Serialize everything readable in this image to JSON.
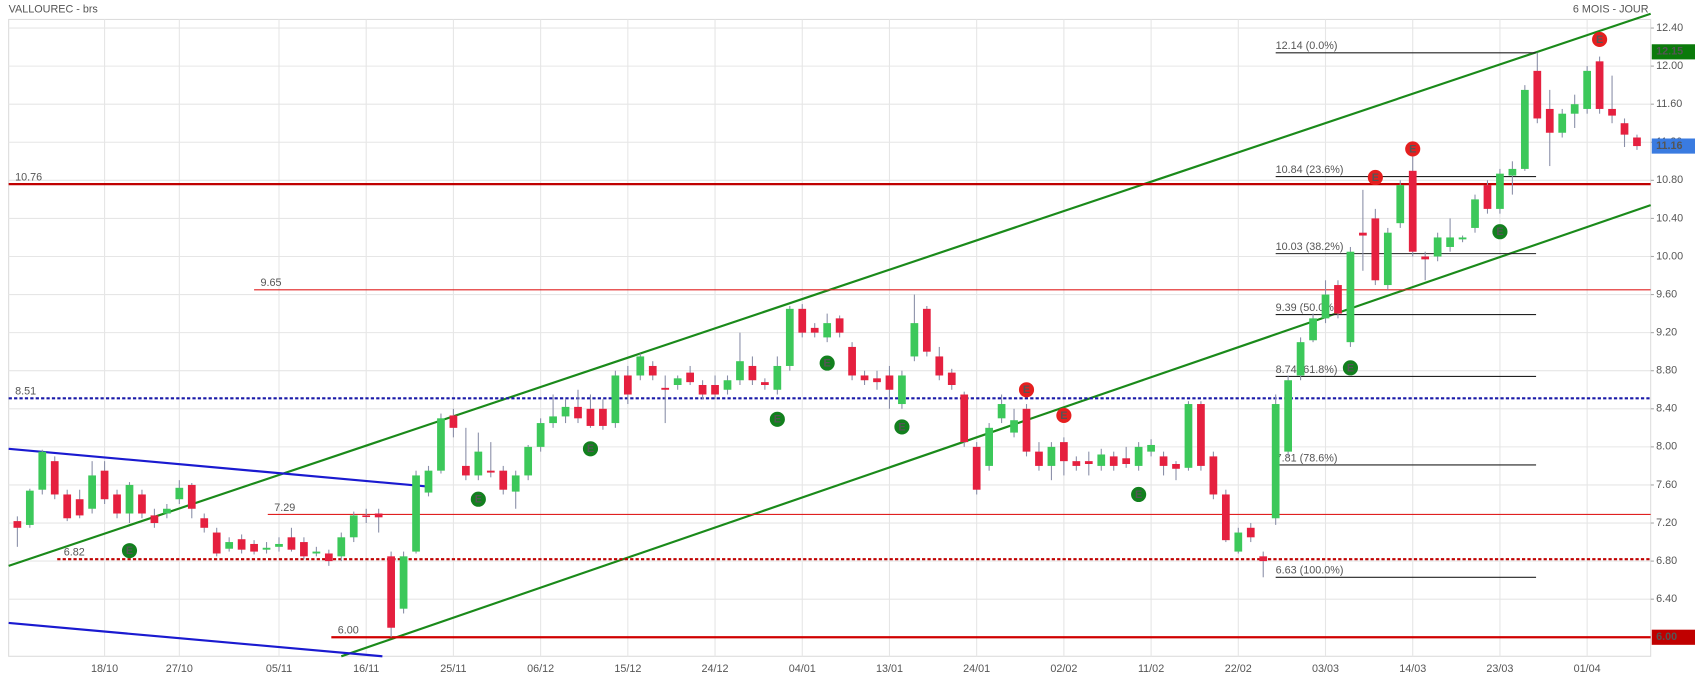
{
  "chart_data": {
    "type": "candlestick",
    "title": "VALLOUREC - brs",
    "subtitle": "6 MOIS - JOUR",
    "up_color": "#3cc85a",
    "down_color": "#e5203f",
    "grid": true,
    "xlim": [
      -0.7,
      131.1
    ],
    "ylim": [
      5.8,
      12.49
    ],
    "xticks": [
      {
        "value": 7,
        "label": "18/10"
      },
      {
        "value": 13,
        "label": "27/10"
      },
      {
        "value": 21,
        "label": "05/11"
      },
      {
        "value": 28,
        "label": "16/11"
      },
      {
        "value": 35,
        "label": "25/11"
      },
      {
        "value": 42,
        "label": "06/12"
      },
      {
        "value": 49,
        "label": "15/12"
      },
      {
        "value": 56,
        "label": "24/12"
      },
      {
        "value": 63,
        "label": "04/01"
      },
      {
        "value": 70,
        "label": "13/01"
      },
      {
        "value": 77,
        "label": "24/01"
      },
      {
        "value": 84,
        "label": "02/02"
      },
      {
        "value": 91,
        "label": "11/02"
      },
      {
        "value": 98,
        "label": "22/02"
      },
      {
        "value": 105,
        "label": "03/03"
      },
      {
        "value": 112,
        "label": "14/03"
      },
      {
        "value": 119,
        "label": "23/03"
      },
      {
        "value": 126,
        "label": "01/04"
      }
    ],
    "yticks": [
      {
        "value": 6.4,
        "label": "6.40"
      },
      {
        "value": 6.8,
        "label": "6.80"
      },
      {
        "value": 7.2,
        "label": "7.20"
      },
      {
        "value": 7.6,
        "label": "7.60"
      },
      {
        "value": 8.0,
        "label": "8.00"
      },
      {
        "value": 8.4,
        "label": "8.40"
      },
      {
        "value": 8.8,
        "label": "8.80"
      },
      {
        "value": 9.2,
        "label": "9.20"
      },
      {
        "value": 9.6,
        "label": "9.60"
      },
      {
        "value": 10.0,
        "label": "10.00"
      },
      {
        "value": 10.4,
        "label": "10.40"
      },
      {
        "value": 10.8,
        "label": "10.80"
      },
      {
        "value": 11.2,
        "label": "11.20"
      },
      {
        "value": 11.6,
        "label": "11.60"
      },
      {
        "value": 12.0,
        "label": "12.00"
      },
      {
        "value": 12.4,
        "label": "12.40"
      }
    ],
    "open": [
      7.22,
      7.18,
      7.55,
      7.85,
      7.5,
      7.45,
      7.35,
      7.75,
      7.5,
      7.3,
      7.5,
      7.28,
      7.3,
      7.45,
      7.6,
      7.25,
      7.1,
      6.93,
      7.03,
      6.98,
      6.92,
      6.95,
      7.05,
      7.0,
      6.88,
      6.88,
      6.85,
      7.05,
      7.28,
      7.3,
      6.85,
      6.3,
      6.9,
      7.52,
      7.75,
      8.33,
      7.8,
      7.7,
      7.75,
      7.75,
      7.53,
      7.7,
      8.0,
      8.25,
      8.32,
      8.42,
      8.4,
      8.4,
      8.25,
      8.75,
      8.75,
      8.85,
      8.62,
      8.65,
      8.78,
      8.65,
      8.65,
      8.6,
      8.7,
      8.85,
      8.68,
      8.6,
      8.85,
      9.45,
      9.25,
      9.15,
      9.35,
      9.05,
      8.75,
      8.72,
      8.75,
      8.45,
      8.95,
      9.45,
      8.95,
      8.78,
      8.55,
      8.0,
      7.8,
      8.3,
      8.15,
      8.4,
      7.95,
      7.8,
      8.05,
      7.85,
      7.85,
      7.8,
      7.9,
      7.88,
      7.8,
      7.95,
      7.9,
      7.82,
      7.78,
      8.45,
      7.9,
      7.5,
      6.9,
      7.15,
      6.85,
      7.25,
      7.95,
      8.75,
      9.12,
      9.35,
      9.7,
      9.1,
      10.25,
      10.4,
      9.7,
      10.35,
      10.9,
      10.0,
      10.0,
      10.1,
      10.18,
      10.3,
      10.75,
      10.5,
      10.85,
      10.92,
      11.95,
      11.55,
      11.3,
      11.5,
      11.55,
      12.05,
      11.55,
      11.4,
      11.25
    ],
    "high": [
      7.27,
      7.56,
      7.97,
      7.9,
      7.55,
      7.55,
      7.85,
      7.85,
      7.55,
      7.63,
      7.55,
      7.35,
      7.4,
      7.65,
      7.62,
      7.3,
      7.15,
      7.05,
      7.08,
      7.02,
      7.0,
      7.05,
      7.15,
      7.05,
      6.95,
      6.92,
      7.1,
      7.32,
      7.35,
      7.35,
      6.9,
      6.9,
      7.75,
      7.8,
      8.35,
      8.4,
      8.2,
      8.15,
      8.05,
      7.8,
      7.75,
      8.02,
      8.3,
      8.55,
      8.5,
      8.6,
      8.55,
      8.5,
      8.8,
      8.85,
      8.98,
      8.9,
      8.75,
      8.75,
      8.85,
      8.7,
      8.75,
      8.75,
      9.2,
      8.95,
      8.72,
      8.95,
      9.48,
      9.5,
      9.3,
      9.4,
      9.38,
      9.1,
      8.8,
      8.8,
      8.85,
      8.8,
      9.6,
      9.48,
      9.05,
      8.82,
      8.58,
      8.05,
      8.25,
      8.55,
      8.4,
      8.45,
      8.05,
      8.05,
      8.1,
      7.9,
      7.95,
      7.98,
      7.95,
      8.0,
      8.05,
      8.08,
      7.95,
      7.85,
      8.48,
      8.48,
      7.95,
      7.55,
      7.15,
      7.2,
      6.9,
      8.55,
      8.75,
      9.15,
      9.4,
      9.75,
      9.75,
      10.1,
      10.7,
      10.5,
      10.3,
      10.8,
      11.15,
      10.05,
      10.25,
      10.4,
      10.22,
      10.65,
      10.8,
      10.92,
      11.0,
      11.8,
      12.14,
      11.75,
      11.55,
      11.7,
      12.0,
      12.1,
      11.9,
      11.45,
      11.28
    ],
    "low": [
      6.95,
      7.15,
      7.5,
      7.45,
      7.22,
      7.25,
      7.3,
      7.4,
      7.25,
      7.2,
      7.25,
      7.15,
      7.25,
      7.4,
      7.25,
      7.1,
      6.85,
      6.9,
      6.88,
      6.87,
      6.88,
      6.9,
      6.9,
      6.82,
      6.85,
      6.75,
      6.8,
      7.0,
      7.2,
      7.1,
      6.0,
      6.25,
      6.88,
      7.48,
      7.72,
      8.1,
      7.65,
      7.65,
      7.68,
      7.5,
      7.35,
      7.65,
      7.95,
      8.2,
      8.25,
      8.25,
      8.2,
      8.18,
      8.2,
      8.45,
      8.7,
      8.7,
      8.25,
      8.6,
      8.65,
      8.5,
      8.5,
      8.55,
      8.65,
      8.65,
      8.6,
      8.55,
      8.8,
      9.15,
      9.15,
      9.1,
      9.15,
      8.7,
      8.65,
      8.6,
      8.4,
      8.4,
      8.9,
      8.95,
      8.7,
      8.6,
      8.0,
      7.5,
      7.75,
      8.25,
      8.1,
      7.9,
      7.75,
      7.65,
      7.7,
      7.75,
      7.7,
      7.75,
      7.75,
      7.78,
      7.75,
      7.9,
      7.7,
      7.65,
      7.75,
      7.75,
      7.45,
      7.0,
      6.88,
      7.0,
      6.63,
      7.18,
      7.9,
      8.7,
      9.1,
      9.3,
      9.35,
      9.05,
      9.85,
      9.7,
      9.65,
      10.3,
      10.0,
      9.75,
      9.95,
      10.05,
      10.15,
      10.25,
      10.45,
      10.45,
      10.65,
      10.9,
      11.4,
      10.95,
      11.25,
      11.35,
      11.5,
      11.5,
      11.4,
      11.15,
      11.12
    ],
    "close": [
      7.15,
      7.54,
      7.95,
      7.5,
      7.25,
      7.28,
      7.7,
      7.45,
      7.3,
      7.6,
      7.3,
      7.2,
      7.35,
      7.57,
      7.35,
      7.15,
      6.88,
      7.0,
      6.92,
      6.9,
      6.94,
      6.98,
      6.92,
      6.85,
      6.9,
      6.8,
      7.05,
      7.28,
      7.27,
      7.26,
      6.1,
      6.85,
      7.7,
      7.75,
      8.3,
      8.2,
      7.7,
      7.95,
      7.73,
      7.55,
      7.7,
      8.0,
      8.25,
      8.32,
      8.42,
      8.3,
      8.22,
      8.22,
      8.75,
      8.55,
      8.95,
      8.75,
      8.6,
      8.72,
      8.68,
      8.55,
      8.55,
      8.7,
      8.9,
      8.7,
      8.65,
      8.85,
      9.45,
      9.2,
      9.2,
      9.3,
      9.2,
      8.75,
      8.7,
      8.68,
      8.6,
      8.75,
      9.3,
      9.0,
      8.75,
      8.65,
      8.05,
      7.55,
      8.2,
      8.45,
      8.28,
      7.95,
      7.8,
      8.0,
      7.85,
      7.8,
      7.82,
      7.92,
      7.8,
      7.82,
      8.0,
      8.02,
      7.8,
      7.77,
      8.45,
      7.8,
      7.5,
      7.02,
      7.1,
      7.05,
      6.8,
      8.45,
      8.7,
      9.1,
      9.35,
      9.6,
      9.4,
      10.05,
      10.22,
      9.75,
      10.25,
      10.75,
      10.05,
      9.97,
      10.2,
      10.2,
      10.2,
      10.6,
      10.5,
      10.87,
      10.92,
      11.75,
      11.45,
      11.3,
      11.5,
      11.6,
      11.95,
      11.55,
      11.48,
      11.28,
      11.16
    ],
    "levels": [
      {
        "label": "10.76",
        "value": 10.76,
        "color": "#c00000",
        "style": "solid",
        "width": 2,
        "from": -0.7
      },
      {
        "label": "9.65",
        "value": 9.65,
        "color": "#e02020",
        "style": "solid",
        "width": 1,
        "from": 19
      },
      {
        "label": "8.51",
        "value": 8.51,
        "color": "#1a1aa8",
        "style": "dotted",
        "width": 2,
        "from": -0.7
      },
      {
        "label": "7.29",
        "value": 7.29,
        "color": "#e02020",
        "style": "solid",
        "width": 1,
        "from": 20.1
      },
      {
        "label": "6.82",
        "value": 6.82,
        "color": "#c00000",
        "style": "dotted",
        "width": 2,
        "from": 3.2
      },
      {
        "label": "6.00",
        "value": 6.0,
        "color": "#d00000",
        "style": "solid",
        "width": 2,
        "from": 25.2
      }
    ],
    "trend_lines": [
      {
        "color": "#1a8a1a",
        "points": [
          [
            -0.7,
            6.75
          ],
          [
            131.1,
            12.55
          ]
        ]
      },
      {
        "color": "#1a8a1a",
        "points": [
          [
            26,
            5.8
          ],
          [
            131.1,
            10.54
          ]
        ]
      },
      {
        "color": "#1a1ad0",
        "points": [
          [
            -0.7,
            7.98
          ],
          [
            33.2,
            7.58
          ]
        ]
      },
      {
        "color": "#1a1ad0",
        "points": [
          [
            -0.7,
            6.15
          ],
          [
            29.3,
            5.8
          ]
        ]
      }
    ],
    "fib": {
      "from": 101,
      "to": 121.9,
      "levels": [
        {
          "value": 12.14,
          "label": "12.14  (0.0%)"
        },
        {
          "value": 10.84,
          "label": "10.84  (23.6%)"
        },
        {
          "value": 10.03,
          "label": "10.03  (38.2%)"
        },
        {
          "value": 9.39,
          "label": "9.39  (50.0%)"
        },
        {
          "value": 8.74,
          "label": "8.74  (61.8%)"
        },
        {
          "value": 7.81,
          "label": "7.81  (78.6%)"
        },
        {
          "value": 6.63,
          "label": "6.63  (100.0%)"
        }
      ]
    },
    "events": [
      {
        "label": "E",
        "index": 9,
        "price": 6.91,
        "color": "#12801e"
      },
      {
        "label": "E",
        "index": 37,
        "price": 7.45,
        "color": "#12801e"
      },
      {
        "label": "E",
        "index": 46,
        "price": 7.98,
        "color": "#12801e"
      },
      {
        "label": "E",
        "index": 61,
        "price": 8.29,
        "color": "#12801e"
      },
      {
        "label": "E",
        "index": 65,
        "price": 8.88,
        "color": "#12801e"
      },
      {
        "label": "E",
        "index": 71,
        "price": 8.21,
        "color": "#12801e"
      },
      {
        "label": "E",
        "index": 81,
        "price": 8.6,
        "color": "#e51f1f"
      },
      {
        "label": "E",
        "index": 84,
        "price": 8.33,
        "color": "#e51f1f"
      },
      {
        "label": "E",
        "index": 90,
        "price": 7.5,
        "color": "#12801e"
      },
      {
        "label": "E",
        "index": 107,
        "price": 8.83,
        "color": "#12801e"
      },
      {
        "label": "E",
        "index": 109,
        "price": 10.83,
        "color": "#e51f1f"
      },
      {
        "label": "E",
        "index": 112,
        "price": 11.13,
        "color": "#e51f1f"
      },
      {
        "label": "E",
        "index": 119,
        "price": 10.26,
        "color": "#12801e"
      },
      {
        "label": "E",
        "index": 127,
        "price": 12.28,
        "color": "#e51f1f"
      }
    ],
    "badges": [
      {
        "value": 12.15,
        "label": "12.15",
        "color": "#0b7a0b"
      },
      {
        "value": 11.16,
        "label": "11.16",
        "color": "#3a7be0"
      },
      {
        "value": 6.0,
        "label": "6.00",
        "color": "#c00000"
      }
    ]
  }
}
